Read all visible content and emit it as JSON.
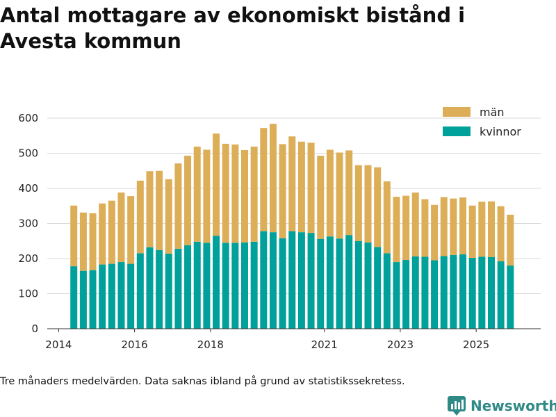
{
  "chart_data": {
    "type": "bar",
    "stacked": true,
    "title": "Antal mottagare av ekonomiskt bistånd i Avesta kommun",
    "xlabel": "",
    "ylabel": "",
    "ylim": [
      0,
      600
    ],
    "yticks": [
      0,
      100,
      200,
      300,
      400,
      500,
      600
    ],
    "x_range": [
      2013.7,
      2026.7
    ],
    "xticks": [
      {
        "label": "2014",
        "value": 2014.0
      },
      {
        "label": "2016",
        "value": 2016.0
      },
      {
        "label": "2018",
        "value": 2018.0
      },
      {
        "label": "2021",
        "value": 2021.0
      },
      {
        "label": "2023",
        "value": 2023.0
      },
      {
        "label": "2025",
        "value": 2025.0
      }
    ],
    "grid": "horizontal",
    "legend_position": "top-right",
    "x": [
      2014.4,
      2014.65,
      2014.9,
      2015.15,
      2015.4,
      2015.65,
      2015.9,
      2016.15,
      2016.4,
      2016.65,
      2016.9,
      2017.15,
      2017.4,
      2017.65,
      2017.9,
      2018.15,
      2018.4,
      2018.65,
      2018.9,
      2019.15,
      2019.4,
      2019.65,
      2019.9,
      2020.15,
      2020.4,
      2020.65,
      2020.9,
      2021.15,
      2021.4,
      2021.65,
      2021.9,
      2022.15,
      2022.4,
      2022.65,
      2022.9,
      2023.15,
      2023.4,
      2023.65,
      2023.9,
      2024.15,
      2024.4,
      2024.65,
      2024.9,
      2025.15,
      2025.4,
      2025.65,
      2025.9
    ],
    "series": [
      {
        "name": "kvinnor",
        "color": "#00a19a",
        "values": [
          178,
          165,
          167,
          183,
          185,
          190,
          185,
          215,
          232,
          224,
          214,
          228,
          238,
          248,
          245,
          265,
          245,
          245,
          246,
          248,
          278,
          275,
          258,
          278,
          275,
          273,
          256,
          263,
          257,
          267,
          250,
          246,
          233,
          215,
          190,
          196,
          206,
          205,
          195,
          207,
          210,
          212,
          202,
          205,
          204,
          192,
          180
        ]
      },
      {
        "name": "män",
        "color": "#ddae58",
        "values": [
          173,
          166,
          162,
          174,
          180,
          198,
          193,
          207,
          217,
          226,
          212,
          243,
          255,
          271,
          265,
          291,
          282,
          280,
          263,
          271,
          294,
          309,
          268,
          270,
          258,
          257,
          237,
          247,
          245,
          241,
          216,
          220,
          227,
          205,
          186,
          183,
          182,
          164,
          158,
          168,
          161,
          162,
          149,
          157,
          159,
          157,
          145
        ]
      }
    ],
    "note": "Tre månaders medelvärden. Data saknas ibland på grund av statistikssekretess."
  },
  "brand": {
    "name": "Newsworthy",
    "icon": "newsworthy-logo-icon",
    "color": "#2f8a86"
  }
}
